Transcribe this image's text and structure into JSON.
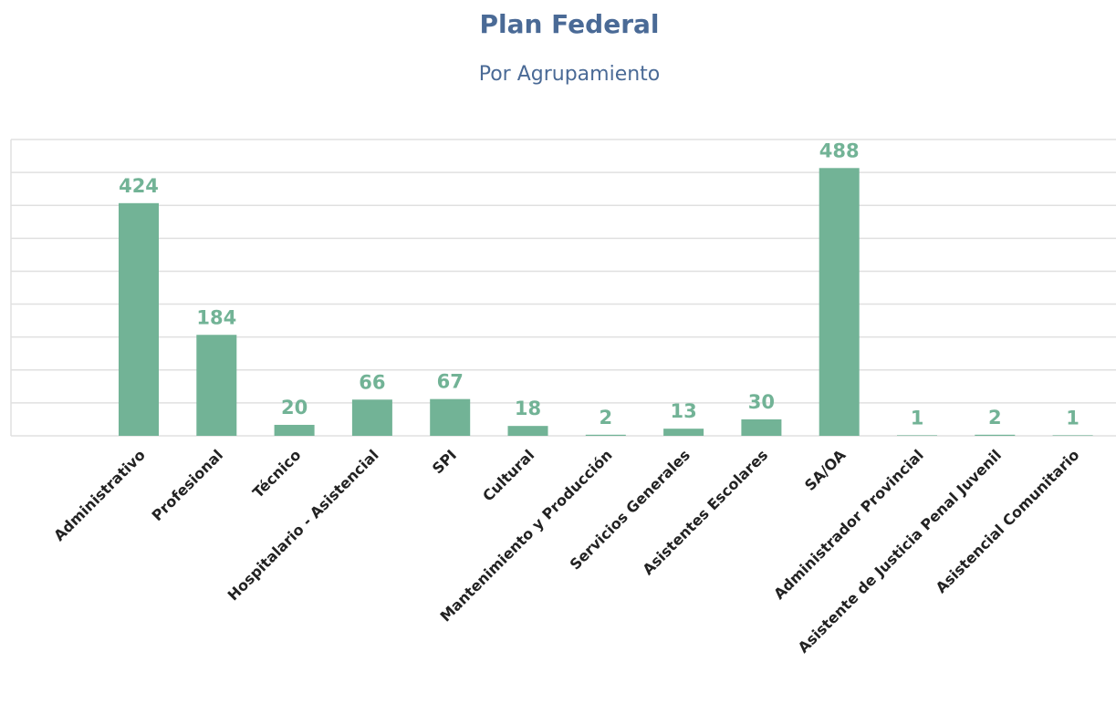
{
  "chart_data": {
    "type": "bar",
    "title": "Plan Federal",
    "subtitle": "Por Agrupamiento",
    "categories": [
      "Administrativo",
      "Profesional",
      "Técnico",
      "Hospitalario - Asistencial",
      "SPI",
      "Cultural",
      "Mantenimiento y Producción",
      "Servicios Generales",
      "Asistentes Escolares",
      "SA/OA",
      "Administrador Provincial",
      "Asistente de Justicia Penal Juvenil",
      "Asistencial Comunitario"
    ],
    "values": [
      424,
      184,
      20,
      66,
      67,
      18,
      2,
      13,
      30,
      488,
      1,
      2,
      1
    ],
    "color": "#72b396",
    "ylim": [
      0,
      540
    ],
    "yticks": [
      0,
      60,
      120,
      180,
      240,
      300,
      360,
      420,
      480,
      540
    ],
    "grid": true
  }
}
